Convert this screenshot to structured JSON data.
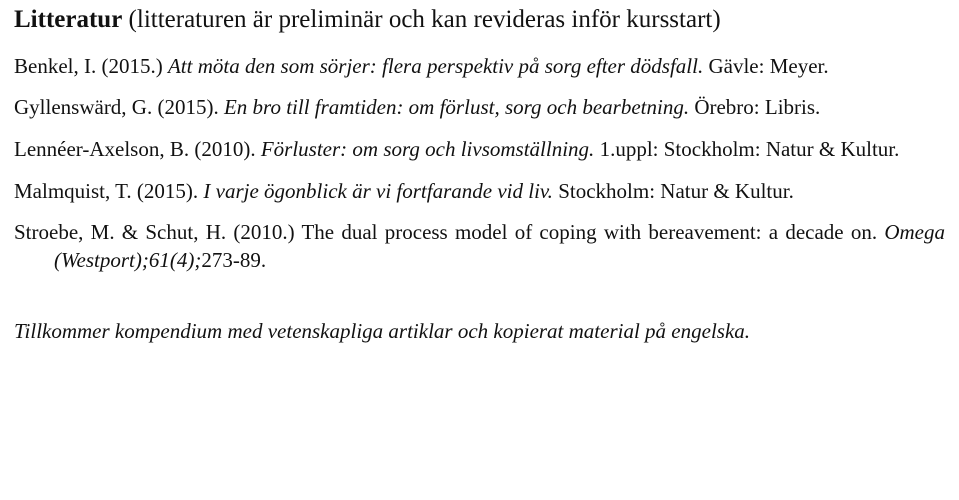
{
  "heading": {
    "bold": "Litteratur",
    "rest": " (litteraturen är preliminär och kan revideras inför kursstart)"
  },
  "refs": {
    "benkel": {
      "pre": "Benkel, I. (2015.) ",
      "title": "Att möta den som sörjer: flera perspektiv på sorg efter dödsfall.",
      "post": " Gävle: Meyer."
    },
    "gyllensward": {
      "pre": "Gyllenswärd, G. (2015). ",
      "title": "En bro till framtiden: om förlust, sorg och bearbetning.",
      "post": " Örebro: Libris."
    },
    "lenneer": {
      "pre": "Lennéer-Axelson, B. (2010). ",
      "title": "Förluster: om sorg och livsomställning.",
      "post": " 1.uppl: Stockholm: Natur & Kultur."
    },
    "malmquist": {
      "pre": "Malmquist, T. (2015). ",
      "title": "I varje ögonblick är vi fortfarande vid liv.",
      "post": " Stockholm: Natur & Kultur."
    },
    "stroebe": {
      "pre": "Stroebe, M. & Schut, H. (2010.) The dual process model of coping with bereavement: a decade on. ",
      "title": "Omega (Westport);61(4);",
      "post": "273-89."
    }
  },
  "footer": "Tillkommer kompendium med vetenskapliga artiklar och kopierat material på engelska."
}
